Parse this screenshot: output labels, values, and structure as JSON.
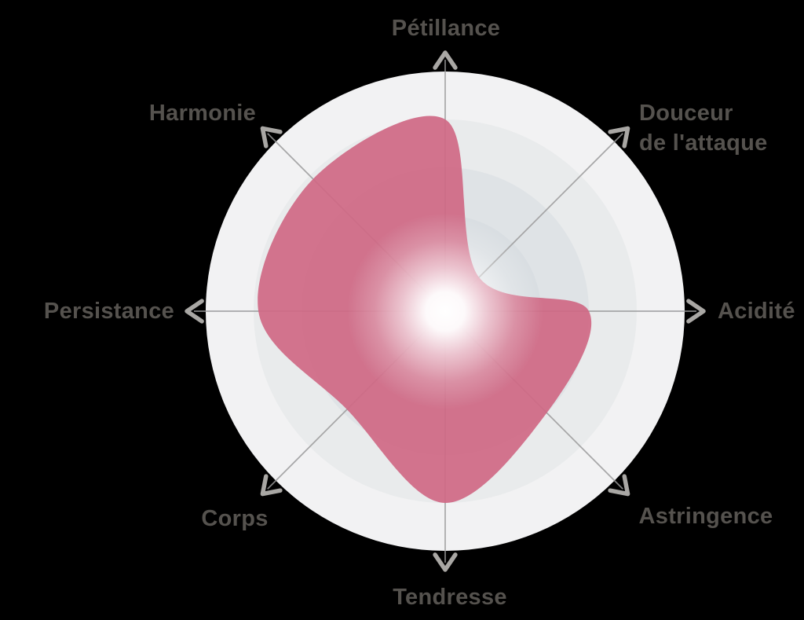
{
  "chart_data": {
    "type": "radar",
    "title": "",
    "categories": [
      "Pétillance",
      "Douceur de l'attaque",
      "Acidité",
      "Astringence",
      "Tendresse",
      "Corps",
      "Persistance",
      "Harmonie"
    ],
    "values": [
      4.0,
      1.0,
      3.0,
      3.0,
      4.0,
      2.9,
      3.9,
      3.9
    ],
    "scale": {
      "min": 0,
      "max": 5,
      "rings": 5
    },
    "angles_deg": [
      90,
      45,
      0,
      -45,
      -90,
      -135,
      180,
      135
    ],
    "legend": "none",
    "grid": "concentric-circles-with-8-arrow-spokes",
    "colors": {
      "area_fill": "#cf6884",
      "ring_colors_inner_to_outer": [
        "#d2d8dc",
        "#d8dde1",
        "#dfe3e6",
        "#e9ebec",
        "#f2f2f3"
      ],
      "axis_line": "#9b9b9b",
      "arrow_head": "#a9a7a4",
      "label_text": "#55524e",
      "center_glow": "#ffffff",
      "background": "#000000"
    }
  },
  "labels": {
    "petillance": "Pétillance",
    "douceur_line1": "Douceur",
    "douceur_line2": "de l'attaque",
    "acidite": "Acidité",
    "astringence": "Astringence",
    "tendresse": "Tendresse",
    "corps": "Corps",
    "persistance": "Persistance",
    "harmonie": "Harmonie"
  }
}
